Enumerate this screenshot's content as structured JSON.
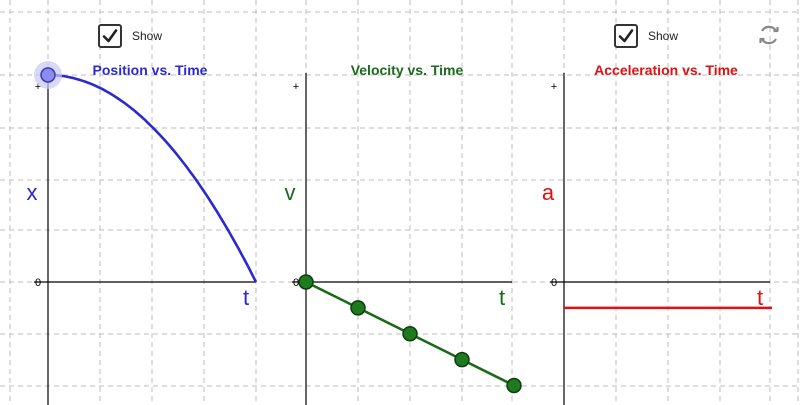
{
  "checkboxes": {
    "position": {
      "label": "Show",
      "checked": true
    },
    "acceleration": {
      "label": "Show",
      "checked": true
    }
  },
  "reset_icon": "refresh-icon",
  "colors": {
    "position": "#2a2ad0",
    "velocity": "#1a6a1a",
    "acceleration": "#dd1111",
    "grid": "#bdbdbd",
    "axis": "#000000",
    "point_fill_position": "#8c8cf0",
    "point_fill_velocity": "#1f7a1f"
  },
  "chart_data": [
    {
      "type": "line",
      "title": "Position vs. Time",
      "xlabel": "t",
      "ylabel": "x",
      "tick_labels": [
        "+",
        "0"
      ],
      "description_of_shape": "downward parabola starting at maximum",
      "series": [
        {
          "x": [
            0,
            0.25,
            0.5,
            0.75,
            1.0,
            1.25,
            1.5,
            1.75,
            2.0
          ],
          "values": [
            4,
            3.94,
            3.75,
            3.44,
            3.0,
            2.44,
            1.75,
            0.94,
            0
          ]
        }
      ],
      "xlim": [
        0,
        2.0
      ],
      "ylim": [
        -2,
        4
      ]
    },
    {
      "type": "line",
      "title": "Velocity vs. Time",
      "xlabel": "t",
      "ylabel": "v",
      "tick_labels": [
        "+",
        "0"
      ],
      "series": [
        {
          "x": [
            0,
            0.5,
            1.0,
            1.5,
            2.0
          ],
          "values": [
            0,
            -0.5,
            -1.0,
            -1.5,
            -2.0
          ]
        }
      ],
      "xlim": [
        0,
        2.0
      ],
      "ylim": [
        -2,
        4
      ]
    },
    {
      "type": "line",
      "title": "Acceleration vs. Time",
      "xlabel": "t",
      "ylabel": "a",
      "tick_labels": [
        "+",
        "0"
      ],
      "series": [
        {
          "x": [
            0,
            2.0
          ],
          "values": [
            -0.5,
            -0.5
          ]
        }
      ],
      "xlim": [
        0,
        2.0
      ],
      "ylim": [
        -2,
        4
      ]
    }
  ]
}
